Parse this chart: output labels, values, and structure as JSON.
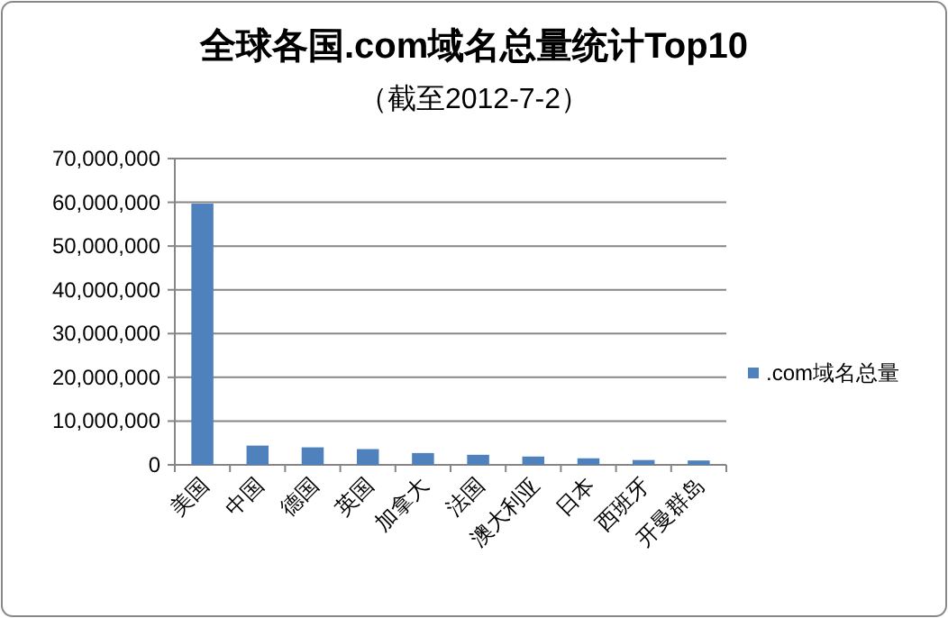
{
  "chart_data": {
    "type": "bar",
    "title": "全球各国.com域名总量统计Top10",
    "subtitle": "（截至2012-7-2）",
    "categories": [
      "美国",
      "中国",
      "德国",
      "英国",
      "加拿大",
      "法国",
      "澳大利亚",
      "日本",
      "西班牙",
      "开曼群岛"
    ],
    "series": [
      {
        "name": ".com域名总量",
        "color": "#4f81bd",
        "values": [
          59700000,
          4400000,
          4000000,
          3600000,
          2700000,
          2300000,
          1900000,
          1500000,
          1100000,
          1000000
        ]
      }
    ],
    "ylim": [
      0,
      70000000
    ],
    "yticks": [
      {
        "value": 0,
        "label": "0"
      },
      {
        "value": 10000000,
        "label": "10,000,000"
      },
      {
        "value": 20000000,
        "label": "20,000,000"
      },
      {
        "value": 30000000,
        "label": "30,000,000"
      },
      {
        "value": 40000000,
        "label": "40,000,000"
      },
      {
        "value": 50000000,
        "label": "50,000,000"
      },
      {
        "value": 60000000,
        "label": "60,000,000"
      },
      {
        "value": 70000000,
        "label": "70,000,000"
      }
    ],
    "grid": "y",
    "legend": "right"
  }
}
